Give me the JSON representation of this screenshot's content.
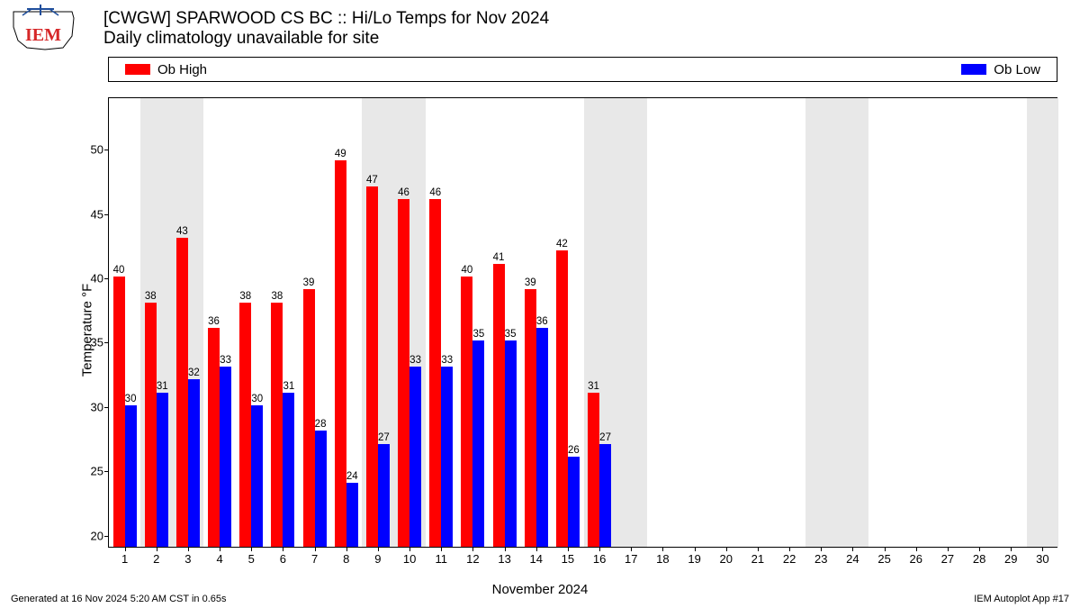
{
  "title": {
    "line1": "[CWGW] SPARWOOD CS  BC :: Hi/Lo Temps for Nov 2024",
    "line2": "Daily climatology unavailable for site"
  },
  "legend": {
    "high": {
      "label": "Ob High",
      "color": "#ff0000"
    },
    "low": {
      "label": "Ob Low",
      "color": "#0000ff"
    }
  },
  "chart": {
    "type": "bar",
    "ylabel": "Temperature °F",
    "xlabel": "November 2024",
    "ylim": [
      19,
      54
    ],
    "yticks": [
      20,
      25,
      30,
      35,
      40,
      45,
      50
    ],
    "xlim": [
      0.5,
      30.5
    ],
    "xticks": [
      1,
      2,
      3,
      4,
      5,
      6,
      7,
      8,
      9,
      10,
      11,
      12,
      13,
      14,
      15,
      16,
      17,
      18,
      19,
      20,
      21,
      22,
      23,
      24,
      25,
      26,
      27,
      28,
      29,
      30
    ],
    "weekend_shade_color": "#e8e8e8",
    "weekend_days": [
      [
        1.5,
        3.5
      ],
      [
        8.5,
        10.5
      ],
      [
        15.5,
        17.5
      ],
      [
        22.5,
        24.5
      ],
      [
        29.5,
        30.5
      ]
    ],
    "background_color": "#ffffff",
    "bar_width": 0.37,
    "label_fontsize": 11.5,
    "axis_fontsize": 13,
    "title_fontsize": 19,
    "days": [
      {
        "day": 1,
        "high": 40,
        "low": 30
      },
      {
        "day": 2,
        "high": 38,
        "low": 31
      },
      {
        "day": 3,
        "high": 43,
        "low": 32
      },
      {
        "day": 4,
        "high": 36,
        "low": 33
      },
      {
        "day": 5,
        "high": 38,
        "low": 30
      },
      {
        "day": 6,
        "high": 38,
        "low": 31
      },
      {
        "day": 7,
        "high": 39,
        "low": 28
      },
      {
        "day": 8,
        "high": 49,
        "low": 24
      },
      {
        "day": 9,
        "high": 47,
        "low": 27
      },
      {
        "day": 10,
        "high": 46,
        "low": 33
      },
      {
        "day": 11,
        "high": 46,
        "low": 33
      },
      {
        "day": 12,
        "high": 40,
        "low": 35
      },
      {
        "day": 13,
        "high": 41,
        "low": 35
      },
      {
        "day": 14,
        "high": 39,
        "low": 36
      },
      {
        "day": 15,
        "high": 42,
        "low": 26
      },
      {
        "day": 16,
        "high": 31,
        "low": 27
      }
    ]
  },
  "footer": {
    "left": "Generated at 16 Nov 2024 5:20 AM CST in 0.65s",
    "right": "IEM Autoplot App #17"
  },
  "logo": {
    "text": "IEM",
    "text_color": "#d62728",
    "outline_color": "#000000",
    "accent_color": "#1f4e9c"
  }
}
